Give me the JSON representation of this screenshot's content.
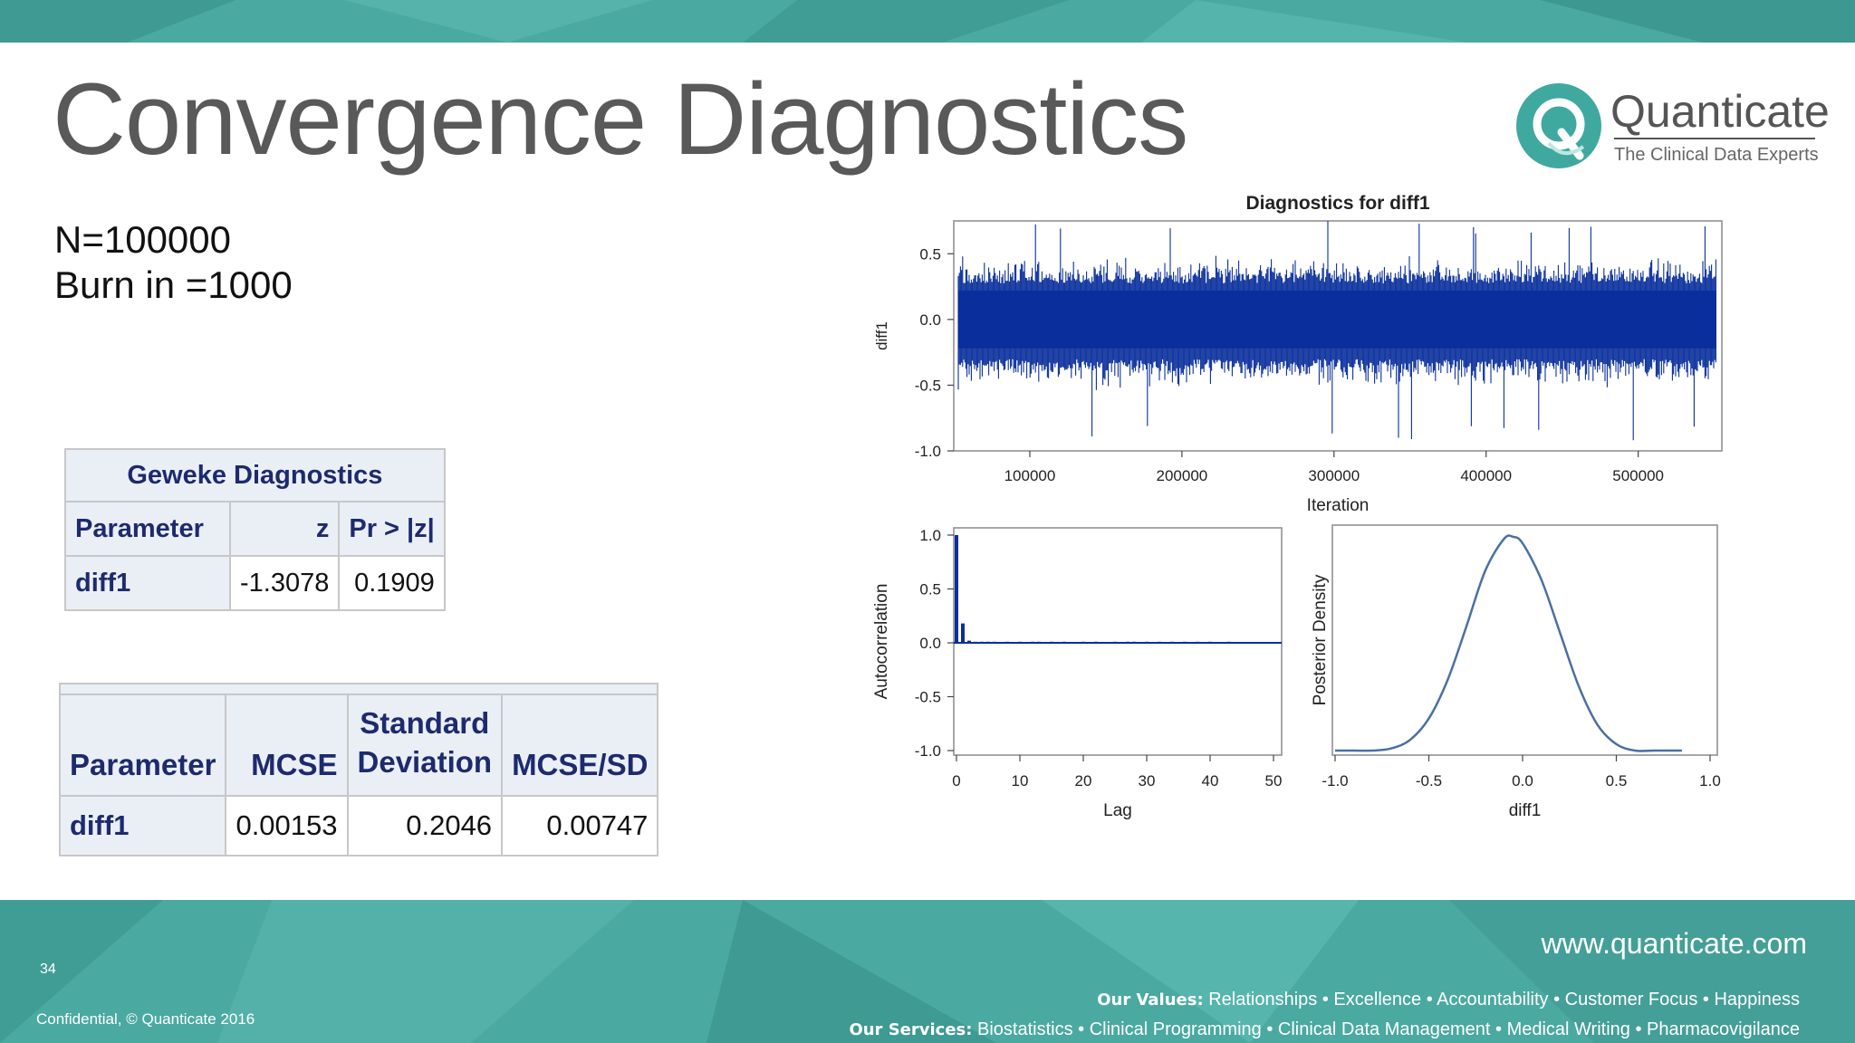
{
  "slide": {
    "title": "Convergence Diagnostics",
    "n_text": "N=100000",
    "burnin_text": "Burn in =1000",
    "slide_number": "34",
    "confidential": "Confidential, © Quanticate 2016"
  },
  "logo": {
    "name": "Quanticate",
    "tagline": "The Clinical Data Experts",
    "icon": "quanticate-q-logo-icon"
  },
  "colors": {
    "band": "#4aa9a1",
    "title": "#595959",
    "table_header_bg": "#eaeff5",
    "table_header_text": "#1d2a6e",
    "plot_series": "#0a2f9c",
    "density_line": "#4a6fa5"
  },
  "geweke_table": {
    "caption": "Geweke Diagnostics",
    "headers": [
      "Parameter",
      "z",
      "Pr > |z|"
    ],
    "rows": [
      [
        "diff1",
        "-1.3078",
        "0.1909"
      ]
    ]
  },
  "mcse_table": {
    "headers": [
      "Parameter",
      "MCSE",
      "Standard\nDeviation",
      "MCSE/SD"
    ],
    "header_std_line1": "Standard",
    "header_std_line2": "Deviation",
    "rows": [
      [
        "diff1",
        "0.00153",
        "0.2046",
        "0.00747"
      ]
    ]
  },
  "footer": {
    "url": "www.quanticate.com",
    "values_label": "Our Values:",
    "values_text": "Relationships • Excellence • Accountability • Customer Focus • Happiness",
    "services_label": "Our Services:",
    "services_text": "Biostatistics • Clinical Programming • Clinical Data Management • Medical Writing • Pharmacovigilance"
  },
  "chart_data": [
    {
      "type": "line",
      "title": "Diagnostics for diff1",
      "xlabel": "Iteration",
      "ylabel": "diff1",
      "xlim": [
        50000,
        555000
      ],
      "ylim": [
        -1.0,
        0.75
      ],
      "xticks": [
        100000,
        200000,
        300000,
        400000,
        500000
      ],
      "yticks": [
        -1.0,
        -0.5,
        0.0,
        0.5
      ],
      "series": [
        {
          "band_core": [
            -0.22,
            0.22
          ],
          "typical_extremes": [
            -0.55,
            0.5
          ],
          "max_spike": 0.75,
          "min_spike": -0.93
        }
      ],
      "grid": false
    },
    {
      "type": "bar",
      "xlabel": "Lag",
      "ylabel": "Autocorrelation",
      "xlim": [
        0,
        50
      ],
      "ylim": [
        -1.0,
        1.0
      ],
      "xticks": [
        0,
        10,
        20,
        30,
        40,
        50
      ],
      "yticks": [
        -1.0,
        -0.5,
        0.0,
        0.5,
        1.0
      ],
      "x": [
        0,
        1,
        2,
        3,
        4,
        5,
        6,
        8,
        10,
        12,
        13,
        15,
        17,
        20,
        22,
        25,
        27,
        28,
        30,
        32,
        34,
        36,
        38,
        40,
        43
      ],
      "values": [
        1.0,
        0.18,
        0.02,
        0.01,
        0.01,
        0.01,
        0.01,
        0.01,
        0.01,
        0.01,
        0.01,
        0.01,
        0.01,
        0.01,
        0.01,
        0.01,
        0.01,
        0.01,
        0.01,
        0.01,
        0.01,
        0.01,
        0.01,
        0.01,
        0.01
      ],
      "grid": false
    },
    {
      "type": "line",
      "xlabel": "diff1",
      "ylabel": "Posterior Density",
      "xlim": [
        -1.0,
        1.0
      ],
      "xticks": [
        -1.0,
        -0.5,
        0.0,
        0.5,
        1.0
      ],
      "x": [
        -1.0,
        -0.9,
        -0.8,
        -0.7,
        -0.6,
        -0.5,
        -0.4,
        -0.3,
        -0.2,
        -0.1,
        -0.05,
        0.0,
        0.1,
        0.2,
        0.3,
        0.4,
        0.5,
        0.6,
        0.7,
        0.8,
        0.85
      ],
      "y": [
        0.0,
        0.0,
        0.0,
        0.01,
        0.05,
        0.15,
        0.33,
        0.58,
        0.84,
        0.99,
        1.0,
        0.97,
        0.8,
        0.55,
        0.3,
        0.12,
        0.03,
        0.0,
        0.0,
        0.0,
        0.0
      ],
      "grid": false
    }
  ]
}
